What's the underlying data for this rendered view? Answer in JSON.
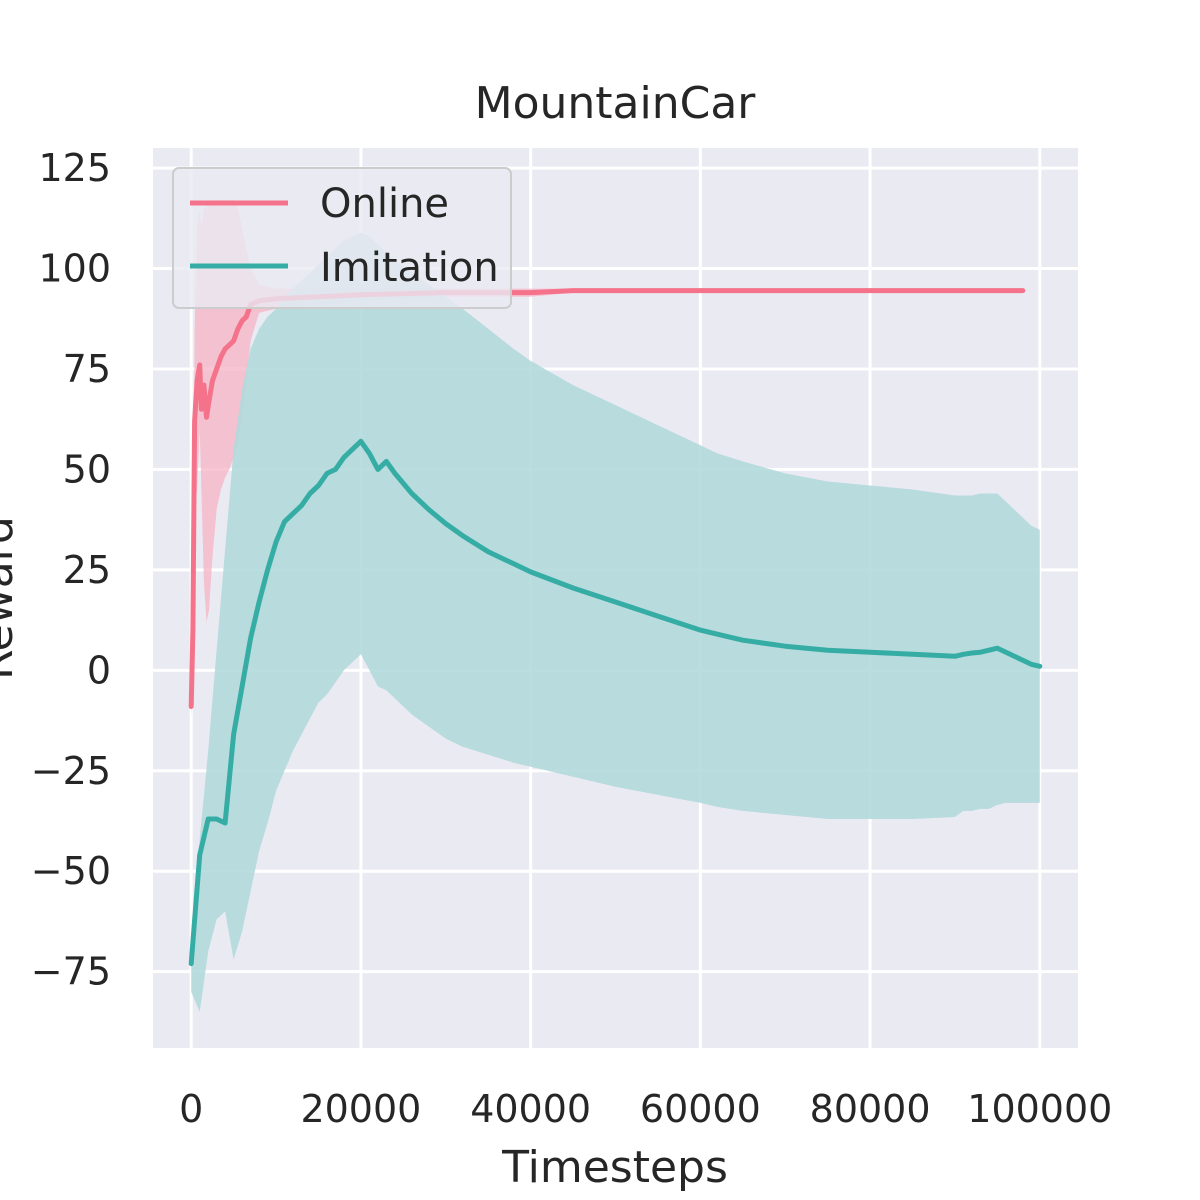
{
  "chart_data": {
    "type": "line",
    "title": "MountainCar",
    "xlabel": "Timesteps",
    "ylabel": "Reward",
    "xlim": [
      -4500,
      104500
    ],
    "ylim": [
      -94,
      130
    ],
    "xticks": [
      0,
      20000,
      40000,
      60000,
      80000,
      100000
    ],
    "xtick_labels": [
      "0",
      "20000",
      "40000",
      "60000",
      "80000",
      "100000"
    ],
    "yticks": [
      -75,
      -50,
      -25,
      0,
      25,
      50,
      75,
      100,
      125
    ],
    "ytick_labels": [
      "−75",
      "−50",
      "−25",
      "0",
      "25",
      "50",
      "75",
      "100",
      "125"
    ],
    "grid": true,
    "legend_position": "top-left",
    "series": [
      {
        "name": "Online",
        "color": "#f5728b",
        "band_color": "#f5b3c4",
        "x": [
          0,
          200,
          400,
          700,
          1000,
          1200,
          1500,
          1800,
          2100,
          2500,
          3000,
          3500,
          4000,
          4500,
          5000,
          5500,
          6000,
          6500,
          7000,
          8000,
          10000,
          15000,
          20000,
          30000,
          40000,
          45000,
          50000,
          60000,
          70000,
          80000,
          90000,
          98000
        ],
        "y": [
          -9,
          10,
          62,
          72,
          76,
          65,
          71,
          63,
          67,
          72,
          75,
          78,
          80,
          81,
          82,
          85,
          87,
          88,
          91,
          92,
          92.5,
          93,
          93.5,
          94,
          94,
          94.5,
          94.5,
          94.5,
          94.5,
          94.5,
          94.5,
          94.5
        ],
        "upper": [
          -2,
          20,
          85,
          110,
          115,
          110,
          115,
          115,
          117,
          117,
          117,
          117,
          117,
          117,
          117,
          115,
          110,
          105,
          100,
          96,
          95,
          95,
          95,
          95,
          95,
          95,
          95,
          95,
          95,
          95,
          95,
          95
        ],
        "lower": [
          -12,
          0,
          40,
          45,
          60,
          45,
          22,
          12,
          15,
          28,
          40,
          45,
          48,
          50,
          53,
          57,
          63,
          72,
          82,
          89,
          90,
          91,
          92,
          93,
          93,
          94,
          94,
          94,
          94,
          94,
          94,
          94
        ]
      },
      {
        "name": "Imitation",
        "color": "#36ada4",
        "band_color": "#b3d9dc",
        "x": [
          0,
          1000,
          2000,
          3000,
          4000,
          5000,
          6000,
          7000,
          8000,
          9000,
          10000,
          11000,
          12000,
          13000,
          14000,
          15000,
          16000,
          17000,
          18000,
          19000,
          20000,
          21000,
          22000,
          23000,
          24000,
          26000,
          28000,
          30000,
          32000,
          35000,
          38000,
          40000,
          45000,
          50000,
          55000,
          60000,
          62000,
          65000,
          70000,
          75000,
          80000,
          85000,
          90000,
          91000,
          92000,
          93000,
          94000,
          95000,
          96000,
          97000,
          98000,
          99000,
          100000
        ],
        "y": [
          -73,
          -46,
          -37,
          -37,
          -38,
          -16,
          -4,
          8,
          17,
          25,
          32,
          37,
          39,
          41,
          44,
          46,
          49,
          50,
          53,
          55,
          57,
          54,
          50,
          52,
          49,
          44,
          40,
          36.5,
          33.5,
          29.5,
          26.5,
          24.5,
          20.5,
          17,
          13.5,
          10,
          9,
          7.5,
          6,
          5,
          4.5,
          4,
          3.5,
          4,
          4.3,
          4.5,
          5,
          5.5,
          4.5,
          3.5,
          2.5,
          1.5,
          1
        ],
        "upper": [
          -70,
          -42,
          -20,
          5,
          30,
          55,
          70,
          80,
          85,
          88,
          90,
          93,
          95,
          97,
          99,
          101,
          103,
          105,
          107,
          108,
          109,
          108,
          106,
          104,
          102,
          99,
          96,
          93,
          90,
          85,
          80,
          77,
          71,
          66,
          61,
          56,
          54,
          52,
          49,
          47,
          46,
          45,
          43.5,
          43.5,
          43.5,
          44,
          44,
          44,
          42,
          40,
          38,
          36,
          35
        ],
        "lower": [
          -80,
          -85,
          -70,
          -62,
          -60,
          -72,
          -65,
          -55,
          -45,
          -38,
          -30,
          -25,
          -20,
          -16,
          -12,
          -8,
          -6,
          -3,
          0,
          2,
          4,
          0,
          -4,
          -5,
          -7,
          -11,
          -14,
          -17,
          -19,
          -21,
          -23,
          -24,
          -26.5,
          -29,
          -31,
          -33,
          -34,
          -35,
          -36,
          -37,
          -37,
          -37,
          -36.5,
          -35,
          -35,
          -34.5,
          -34.5,
          -33.5,
          -33,
          -33,
          -33,
          -33,
          -33
        ]
      }
    ]
  }
}
